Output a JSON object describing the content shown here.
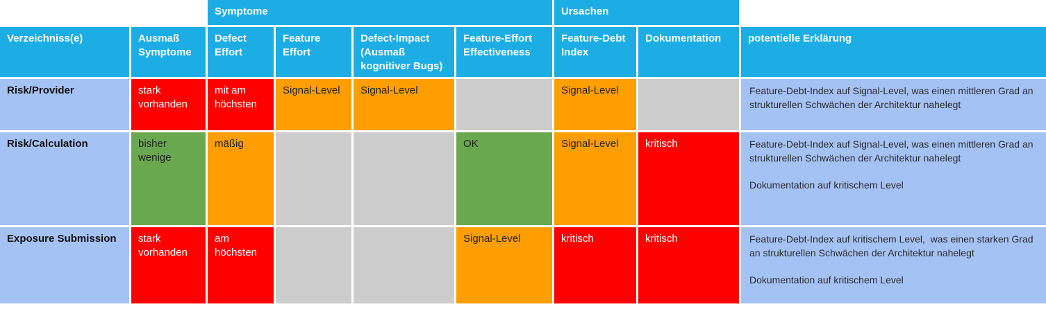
{
  "palette": {
    "header_bg": "#1CADE4",
    "header_text": "#FFFFFF",
    "row_label_bg": "#A4C2F4",
    "critical_red": "#FF0000",
    "warning_orange": "#FF9E00",
    "ok_green": "#6AA84F",
    "neutral_gray": "#CCCCCC"
  },
  "band": {
    "symptome": "Symptome",
    "ursachen": "Ursachen"
  },
  "headers": {
    "verzeichnisse": "Verzeichniss(e)",
    "ausmass": "Ausmaß Symptome",
    "defect_effort": "Defect Effort",
    "feature_effort": "Feature Effort",
    "defect_impact": "Defect-Impact (Ausmaß kognitiver Bugs)",
    "fee": "Feature-Effort Effectiveness",
    "fdi": "Feature-Debt Index",
    "doku": "Dokumentation",
    "erklaerung": "potentielle Erklärung"
  },
  "rows": [
    {
      "name": "Risk/Provider",
      "ausmass": {
        "text": "stark vorhanden",
        "status": "red"
      },
      "defect_effort": {
        "text": "mit am höchsten",
        "status": "red"
      },
      "feature_effort": {
        "text": "Signal-Level",
        "status": "orange"
      },
      "defect_impact": {
        "text": "Signal-Level",
        "status": "orange"
      },
      "fee": {
        "text": "",
        "status": "gray"
      },
      "fdi": {
        "text": "Signal-Level",
        "status": "orange"
      },
      "doku": {
        "text": "",
        "status": "gray"
      },
      "erklaerung": "Feature-Debt-Index auf Signal-Level, was einen mittleren Grad an strukturellen Schwächen der Architektur nahelegt"
    },
    {
      "name": "Risk/Calculation",
      "ausmass": {
        "text": "bisher wenige",
        "status": "green"
      },
      "defect_effort": {
        "text": "mäßig",
        "status": "orange"
      },
      "feature_effort": {
        "text": "",
        "status": "gray"
      },
      "defect_impact": {
        "text": "",
        "status": "gray"
      },
      "fee": {
        "text": "OK",
        "status": "green"
      },
      "fdi": {
        "text": "Signal-Level",
        "status": "orange"
      },
      "doku": {
        "text": "kritisch",
        "status": "red"
      },
      "erklaerung": "Feature-Debt-Index auf Signal-Level, was einen mittleren Grad an strukturellen Schwächen der Architektur nahelegt\n\nDokumentation auf kritischem Level"
    },
    {
      "name": "Exposure Submission",
      "ausmass": {
        "text": "stark vorhanden",
        "status": "red"
      },
      "defect_effort": {
        "text": "am höchsten",
        "status": "red"
      },
      "feature_effort": {
        "text": "",
        "status": "gray"
      },
      "defect_impact": {
        "text": "",
        "status": "gray"
      },
      "fee": {
        "text": "Signal-Level",
        "status": "orange"
      },
      "fdi": {
        "text": "kritisch",
        "status": "red"
      },
      "doku": {
        "text": "kritisch",
        "status": "red"
      },
      "erklaerung": "Feature-Debt-Index auf kritischem Level,  was einen starken Grad an strukturellen Schwächen der Architektur nahelegt\n\nDokumentation auf kritischem Level"
    }
  ]
}
